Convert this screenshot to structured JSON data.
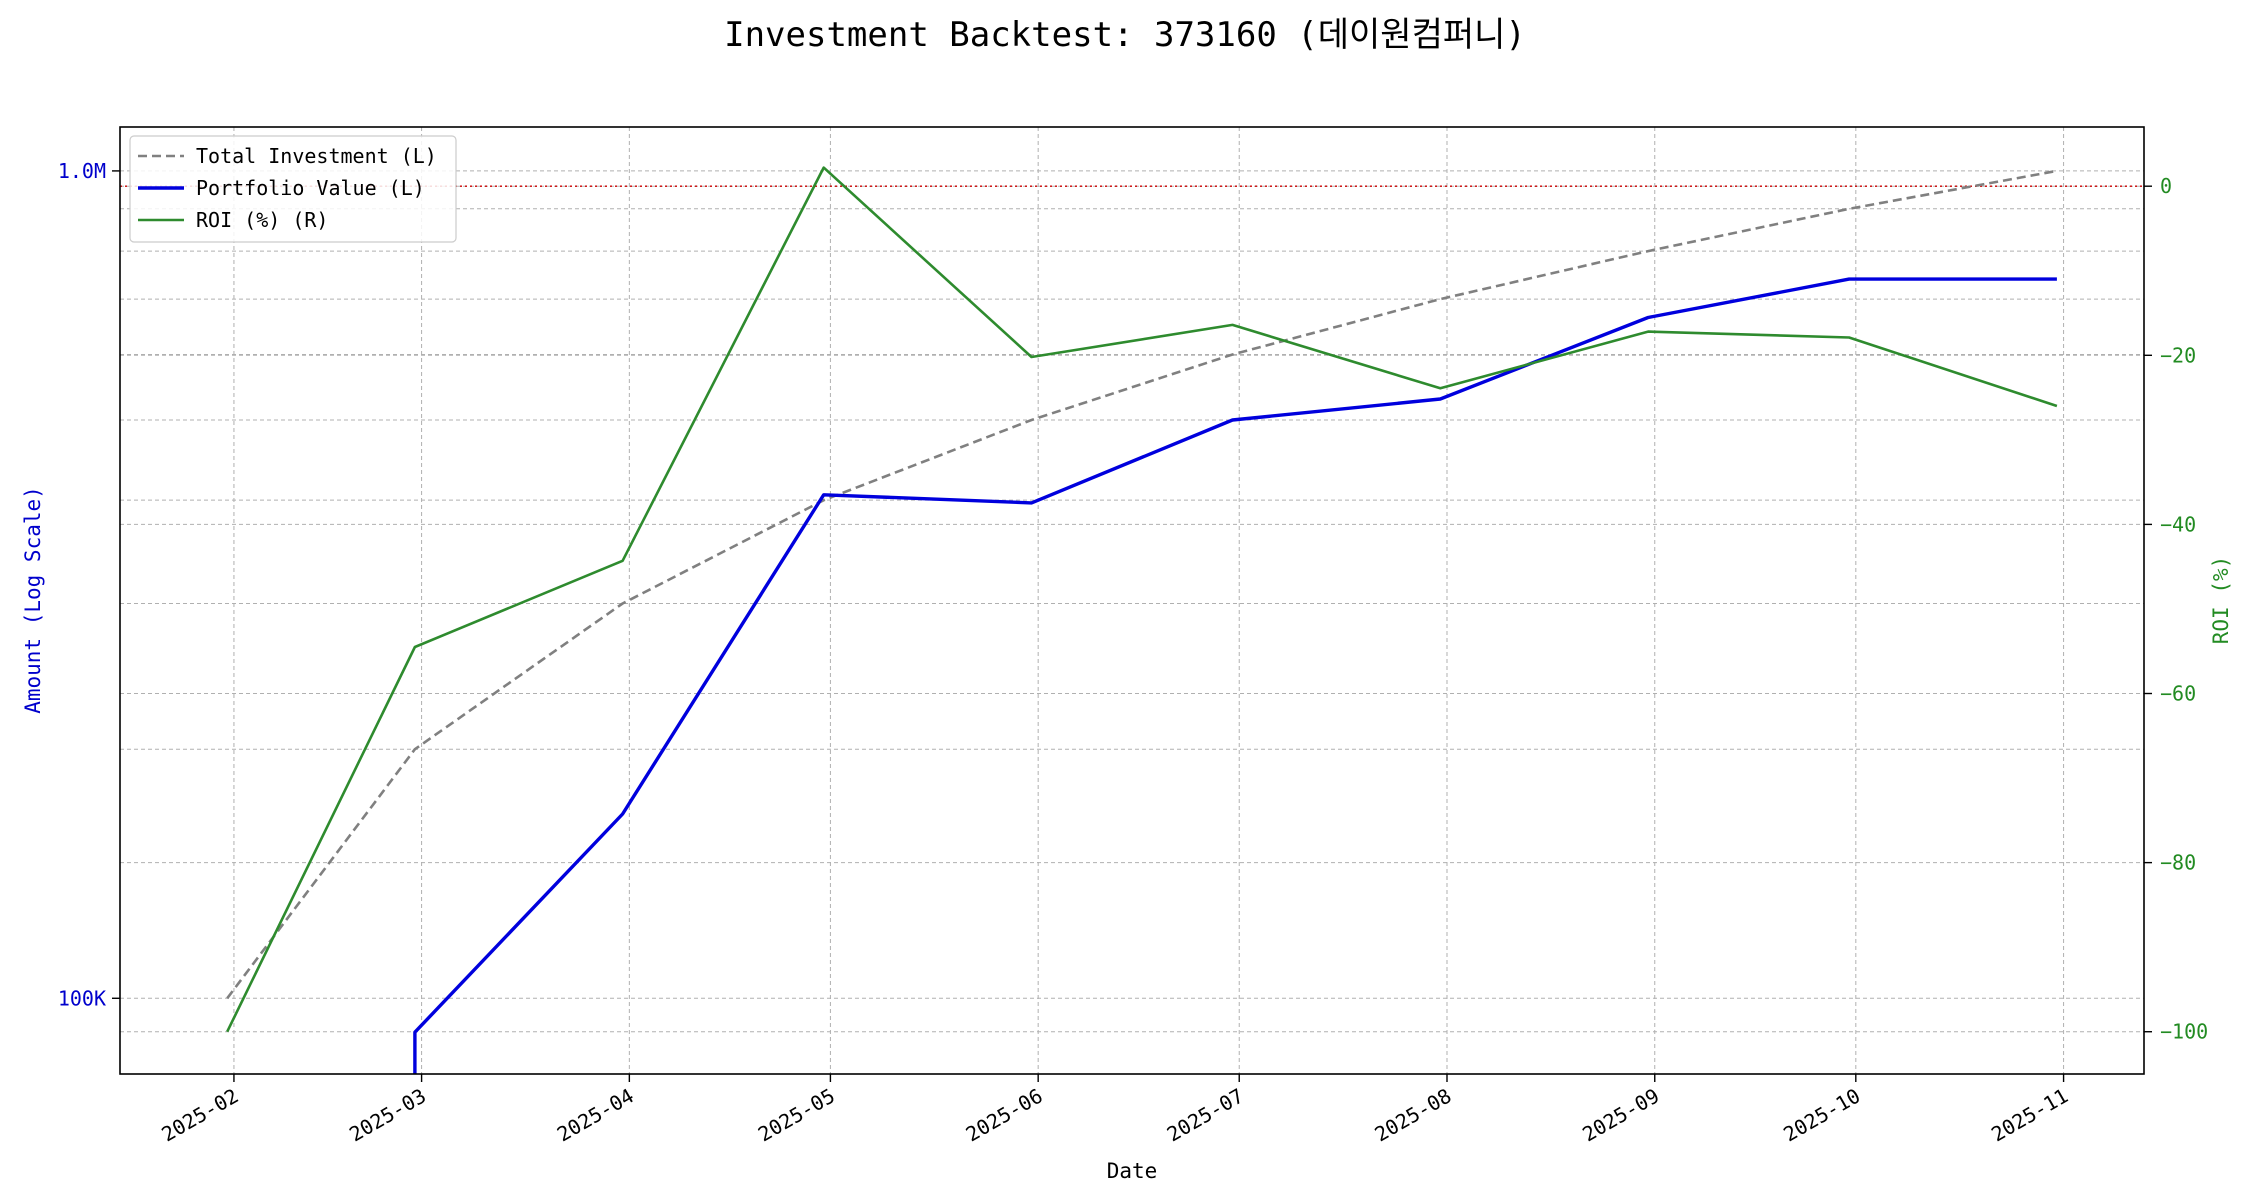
{
  "chart_data": {
    "type": "line",
    "title": "Investment Backtest: 373160 (데이원컴퍼니)",
    "xlabel": "Date",
    "ylabel_left": "Amount (Log Scale)",
    "ylabel_right": "ROI (%)",
    "left_axis": {
      "scale": "log",
      "range": [
        81000,
        1130000
      ],
      "tick_values": [
        100000,
        1000000
      ],
      "tick_labels": [
        "100K",
        "1.0M"
      ],
      "minor_gridlines": [
        200000,
        300000,
        400000,
        500000,
        600000,
        700000,
        800000,
        900000
      ],
      "color": "#0000cc"
    },
    "right_axis": {
      "scale": "linear",
      "range": [
        -105,
        7
      ],
      "tick_values": [
        0,
        -20,
        -40,
        -60,
        -80,
        -100
      ],
      "tick_labels": [
        "0",
        "−20",
        "−40",
        "−60",
        "−80",
        "−100"
      ],
      "color": "#228B22"
    },
    "x_axis": {
      "range": [
        "2025-01-15",
        "2025-11-13"
      ],
      "tick_dates": [
        "2025-02-01",
        "2025-03-01",
        "2025-04-01",
        "2025-05-01",
        "2025-06-01",
        "2025-07-01",
        "2025-08-01",
        "2025-09-01",
        "2025-10-01",
        "2025-11-01"
      ],
      "tick_labels": [
        "2025-02",
        "2025-03",
        "2025-04",
        "2025-05",
        "2025-06",
        "2025-07",
        "2025-08",
        "2025-09",
        "2025-10",
        "2025-11"
      ]
    },
    "grid": true,
    "legend_position": "top-left",
    "reference_line": {
      "axis": "right",
      "value": 0,
      "color": "#cc0000",
      "style": "dotted"
    },
    "series": [
      {
        "name": "Total Investment (L)",
        "axis": "left",
        "color": "#808080",
        "style": "dashed",
        "x": [
          "2025-01-31",
          "2025-02-28",
          "2025-03-31",
          "2025-04-30",
          "2025-05-31",
          "2025-06-30",
          "2025-07-31",
          "2025-08-31",
          "2025-09-30",
          "2025-10-31"
        ],
        "values": [
          100000,
          200000,
          300000,
          400000,
          500000,
          600000,
          700000,
          800000,
          900000,
          1000000
        ]
      },
      {
        "name": "Portfolio Value (L)",
        "axis": "left",
        "color": "#0000dd",
        "style": "solid",
        "x": [
          "2025-02-28",
          "2025-02-28",
          "2025-03-31",
          "2025-04-30",
          "2025-05-31",
          "2025-06-30",
          "2025-07-31",
          "2025-08-31",
          "2025-09-30",
          "2025-10-31"
        ],
        "values": [
          81000,
          91000,
          167000,
          406000,
          397000,
          500000,
          530000,
          665000,
          740000,
          740000
        ]
      },
      {
        "name": "ROI (%) (R)",
        "axis": "right",
        "color": "#2e8b2e",
        "style": "solid",
        "x": [
          "2025-01-31",
          "2025-02-28",
          "2025-03-31",
          "2025-04-30",
          "2025-05-31",
          "2025-06-30",
          "2025-07-31",
          "2025-08-31",
          "2025-09-30",
          "2025-10-31"
        ],
        "values": [
          -100,
          -54.5,
          -44.3,
          2.2,
          -20.2,
          -16.4,
          -23.9,
          -17.2,
          -17.9,
          -26.0
        ]
      }
    ]
  }
}
